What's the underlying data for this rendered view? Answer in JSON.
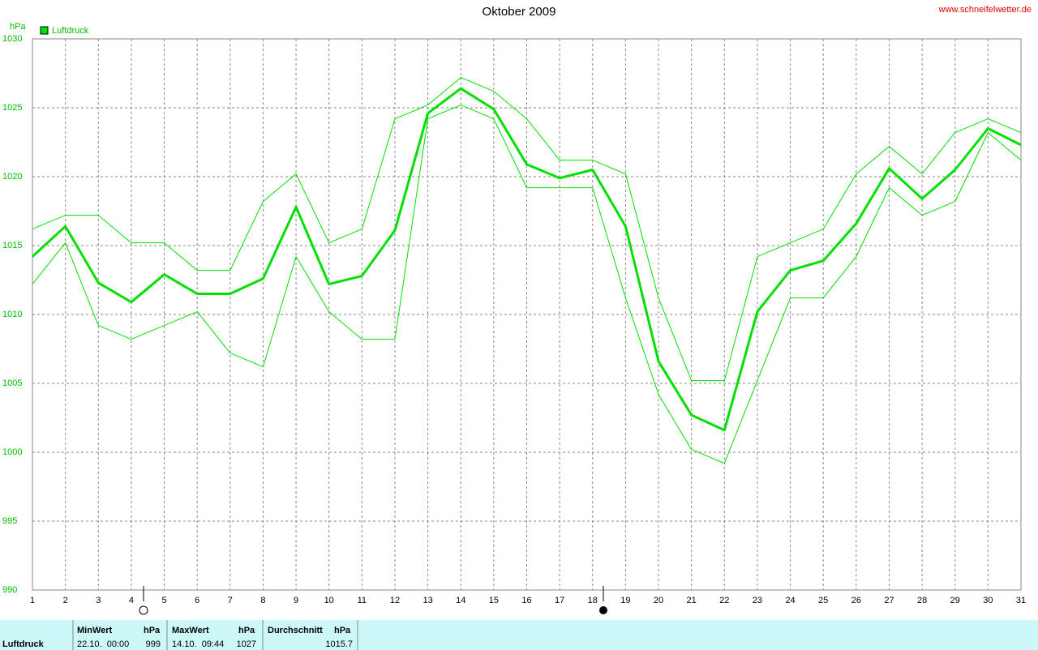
{
  "chart_data": {
    "type": "line",
    "title": "Oktober 2009",
    "source": "www.schneifelwetter.de",
    "y_unit": "hPa",
    "x": [
      1,
      2,
      3,
      4,
      5,
      6,
      7,
      8,
      9,
      10,
      11,
      12,
      13,
      14,
      15,
      16,
      17,
      18,
      19,
      20,
      21,
      22,
      23,
      24,
      25,
      26,
      27,
      28,
      29,
      30,
      31
    ],
    "xlim": [
      1,
      31
    ],
    "xticks": [
      1,
      2,
      3,
      4,
      5,
      6,
      7,
      8,
      9,
      10,
      11,
      12,
      13,
      14,
      15,
      16,
      17,
      18,
      19,
      20,
      21,
      22,
      23,
      24,
      25,
      26,
      27,
      28,
      29,
      30,
      31
    ],
    "ylim": [
      990,
      1030
    ],
    "yticks": [
      990,
      995,
      1000,
      1005,
      1010,
      1015,
      1020,
      1025,
      1030
    ],
    "grid": true,
    "series": [
      {
        "name": "Luftdruck",
        "color": "#00e000",
        "values": [
          1014.2,
          1016.4,
          1012.3,
          1010.9,
          1012.9,
          1011.5,
          1011.5,
          1012.6,
          1017.8,
          1012.2,
          1012.8,
          1016.1,
          1024.6,
          1026.4,
          1024.9,
          1020.9,
          1019.9,
          1020.5,
          1016.4,
          1006.6,
          1002.7,
          1001.6,
          1010.2,
          1013.2,
          1013.9,
          1016.6,
          1020.6,
          1018.4,
          1020.5,
          1023.5,
          1022.3
        ]
      },
      {
        "color": "#00e000",
        "values": [
          1016.2,
          1017.2,
          1017.2,
          1015.2,
          1015.2,
          1013.2,
          1013.2,
          1018.2,
          1020.2,
          1015.2,
          1016.2,
          1024.2,
          1025.2,
          1027.2,
          1026.2,
          1024.2,
          1021.2,
          1021.2,
          1020.2,
          1011.2,
          1005.2,
          1005.2,
          1014.2,
          1015.2,
          1016.2,
          1020.2,
          1022.2,
          1020.2,
          1023.2,
          1024.2,
          1023.2
        ]
      },
      {
        "color": "#00e000",
        "values": [
          1012.2,
          1015.2,
          1009.2,
          1008.2,
          1009.2,
          1010.2,
          1007.2,
          1006.2,
          1014.2,
          1010.2,
          1008.2,
          1008.2,
          1024.2,
          1025.2,
          1024.2,
          1019.2,
          1019.2,
          1019.2,
          1011.2,
          1004.2,
          1000.2,
          999.2,
          1005.2,
          1011.2,
          1011.2,
          1014.2,
          1019.2,
          1017.2,
          1018.2,
          1023.2,
          1021.2
        ]
      }
    ]
  },
  "footer": {
    "label": "Luftdruck",
    "min": {
      "title": "MinWert",
      "unit": "hPa",
      "date": "22.10.  00:00",
      "value": "999"
    },
    "max": {
      "title": "MaxWert",
      "unit": "hPa",
      "date": "14.10.  09:44",
      "value": "1027"
    },
    "avg": {
      "title": "Durchschnitt",
      "unit": "hPa",
      "value": "1015.7"
    }
  }
}
